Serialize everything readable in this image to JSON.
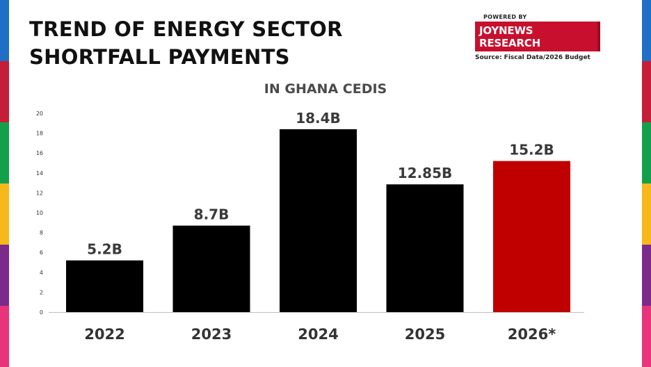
{
  "header": {
    "title": "TREND OF ENERGY SECTOR SHORTFALL PAYMENTS",
    "powered_by": "POWERED BY",
    "brand": "JOYNEWS RESEARCH",
    "source": "Source: Fiscal Data/2026 Budget"
  },
  "colors": {
    "bar_default": "#000000",
    "bar_highlight": "#c00000",
    "brand_red": "#c8102e",
    "stripes": [
      "#1f6fc6",
      "#c41f36",
      "#14a04a",
      "#f6b81a",
      "#7b2a8c",
      "#e8347a"
    ]
  },
  "chart_data": {
    "type": "bar",
    "title": "IN GHANA CEDIS",
    "xlabel": "",
    "ylabel": "",
    "categories": [
      "2022",
      "2023",
      "2024",
      "2025",
      "2026*"
    ],
    "values": [
      5.2,
      8.7,
      18.4,
      12.85,
      15.2
    ],
    "data_labels": [
      "5.2B",
      "8.7B",
      "18.4B",
      "12.85B",
      "15.2B"
    ],
    "yticks": [
      "0",
      "2",
      "4",
      "6",
      "8",
      "10",
      "12",
      "14",
      "16",
      "18",
      "20"
    ],
    "ylim": [
      0,
      20
    ],
    "grid": false,
    "legend": "none",
    "highlight_index": 4
  }
}
